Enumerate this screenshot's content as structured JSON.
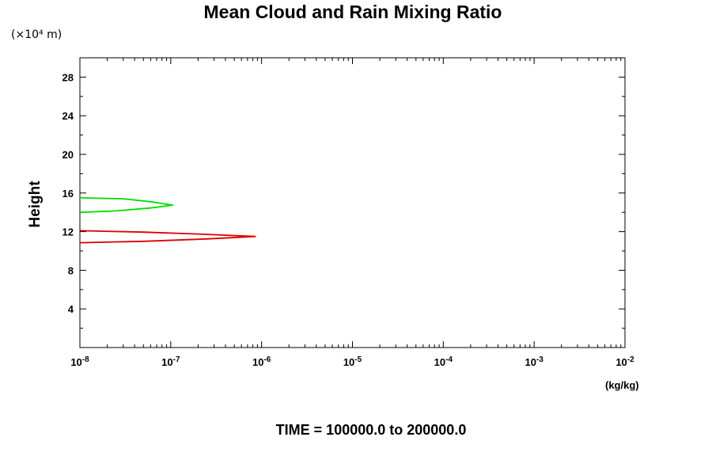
{
  "chart_data": {
    "type": "line",
    "title": "Mean Cloud and Rain Mixing Ratio",
    "ylabel": "Height",
    "y_scale_text": "(×10⁴ m)",
    "x_units": "(kg/kg)",
    "x_scale": "log",
    "xlim": [
      1e-08,
      0.01
    ],
    "ylim": [
      0,
      30
    ],
    "y_ticks": [
      4,
      8,
      12,
      16,
      20,
      24,
      28
    ],
    "x_ticks": [
      {
        "value": 1e-08,
        "base": "10",
        "exp": "-8"
      },
      {
        "value": 1e-07,
        "base": "10",
        "exp": "-7"
      },
      {
        "value": 1e-06,
        "base": "10",
        "exp": "-6"
      },
      {
        "value": 1e-05,
        "base": "10",
        "exp": "-5"
      },
      {
        "value": 0.0001,
        "base": "10",
        "exp": "-4"
      },
      {
        "value": 0.001,
        "base": "10",
        "exp": "-3"
      },
      {
        "value": 0.01,
        "base": "10",
        "exp": "-2"
      }
    ],
    "series": [
      {
        "color": "#00dd00",
        "points": [
          [
            1e-08,
            15.5
          ],
          [
            3e-08,
            15.4
          ],
          [
            6e-08,
            15.1
          ],
          [
            1.05e-07,
            14.75
          ],
          [
            6e-08,
            14.45
          ],
          [
            2.5e-08,
            14.15
          ],
          [
            1e-08,
            14.0
          ]
        ]
      },
      {
        "color": "#dd0000",
        "points": [
          [
            1e-08,
            12.1
          ],
          [
            5e-08,
            11.95
          ],
          [
            2e-07,
            11.75
          ],
          [
            8.5e-07,
            11.5
          ],
          [
            2.5e-07,
            11.25
          ],
          [
            5e-08,
            11.0
          ],
          [
            1e-08,
            10.85
          ]
        ]
      }
    ],
    "grid": false,
    "legend": "none"
  },
  "footer": "TIME = 100000.0 to 200000.0"
}
